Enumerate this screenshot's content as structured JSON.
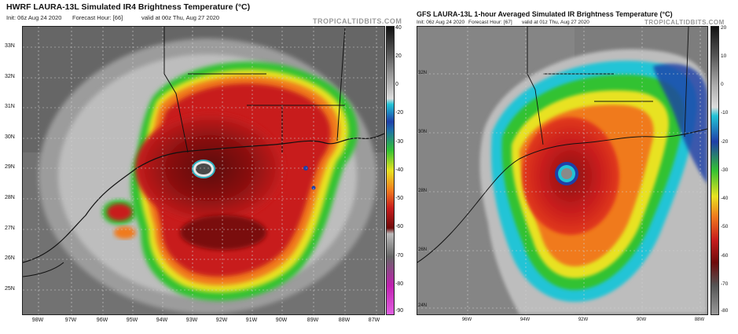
{
  "left": {
    "title": "HWRF LAURA-13L Simulated IR4 Brightness Temperature (°C)",
    "init": "Init: 06z Aug 24 2020",
    "forecast_hour": "Forecast Hour: [66]",
    "valid": "valid at 00z Thu, Aug 27 2020",
    "brand": "TROPICALTIDBITS.COM",
    "colorbar_ticks": [
      "40",
      "20",
      "0",
      "-20",
      "-30",
      "-40",
      "-50",
      "-60",
      "-70",
      "-80",
      "-90"
    ],
    "lat_labels": [
      "33N",
      "32N",
      "31N",
      "30N",
      "29N",
      "28N",
      "27N",
      "26N",
      "25N"
    ],
    "lon_labels": [
      "98W",
      "97W",
      "96W",
      "95W",
      "94W",
      "93W",
      "92W",
      "91W",
      "90W",
      "89W",
      "88W",
      "87W"
    ]
  },
  "right": {
    "title": "GFS LAURA-13L 1-hour Averaged Simulated IR Brightness Temperature (°C)",
    "init": "Init: 06z Aug 24 2020",
    "forecast_hour": "Forecast Hour: [67]",
    "valid": "valid at 01z Thu, Aug 27 2020",
    "brand": "TROPICALTIDBITS.COM",
    "colorbar_ticks": [
      "20",
      "10",
      "0",
      "-10",
      "-20",
      "-30",
      "-40",
      "-50",
      "-60",
      "-70",
      "-80"
    ],
    "lat_labels": [
      "32N",
      "30N",
      "28N",
      "26N",
      "24N"
    ],
    "lon_labels": [
      "96W",
      "94W",
      "92W",
      "90W",
      "88W"
    ]
  },
  "colors": {
    "cold_cloud_red": "#c81d1d",
    "core_dark_red": "#6e0b0b",
    "orange": "#f07a1e",
    "green": "#33c233",
    "cyan": "#22c4d6",
    "blue": "#1f3fa8",
    "magenta": "#c020b0",
    "background_gray": "#6b6b6b"
  }
}
